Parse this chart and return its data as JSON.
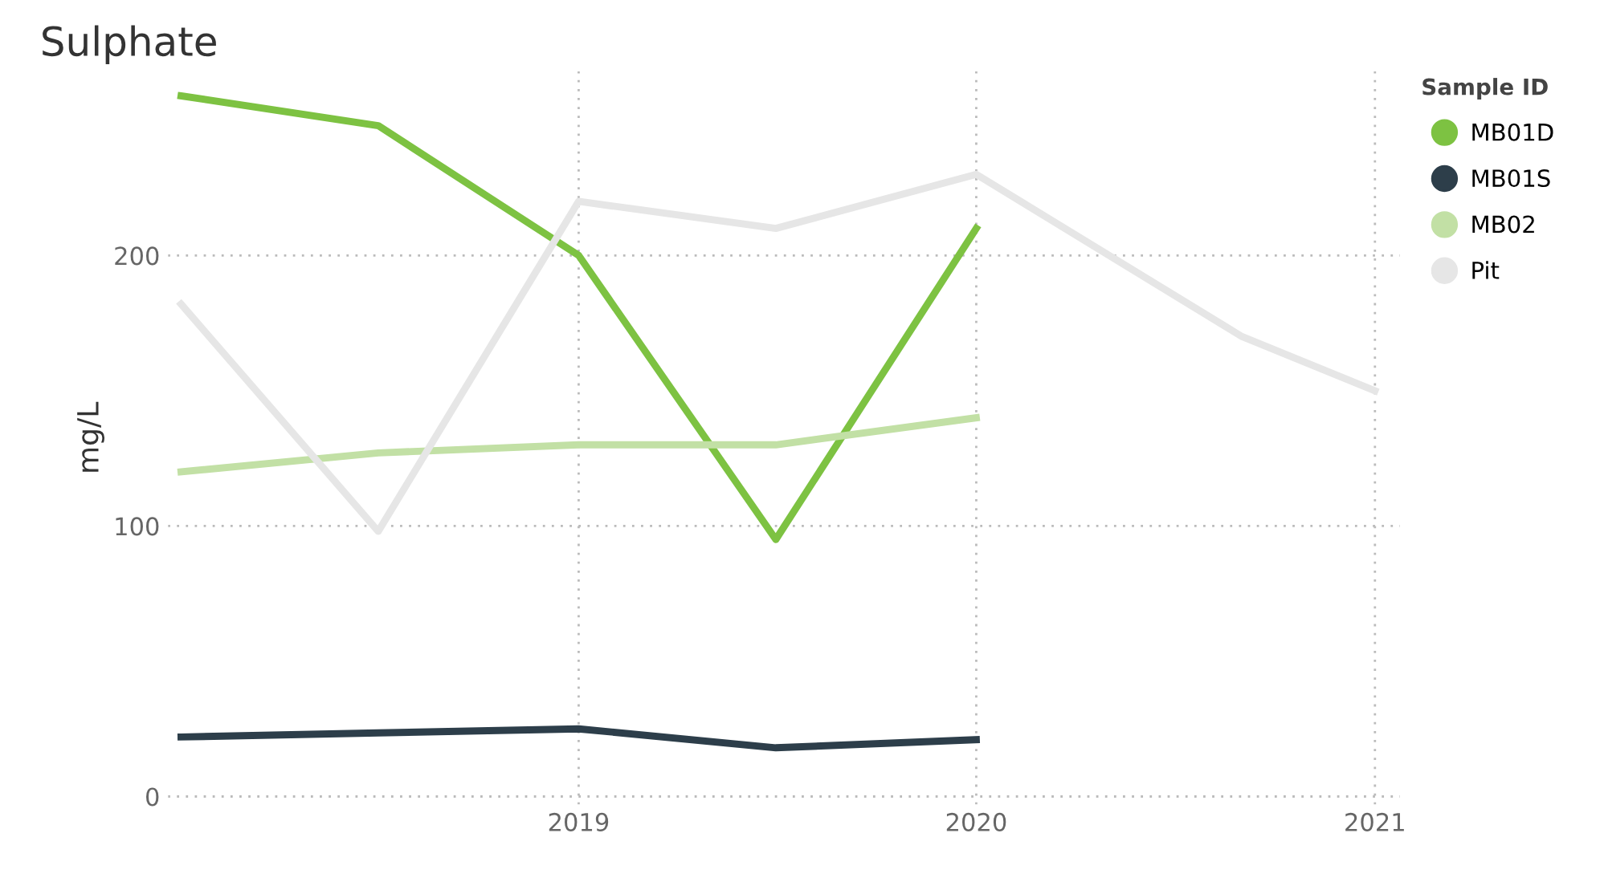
{
  "chart_data": {
    "type": "line",
    "title": "Sulphate",
    "ylabel": "mg/L",
    "legend_title": "Sample ID",
    "x": [
      "2018-01",
      "2018-07",
      "2019-01",
      "2019-07",
      "2020-01"
    ],
    "series": [
      {
        "name": "MB01D",
        "color": "#7dc242",
        "values": [
          259,
          248,
          200,
          95,
          210
        ]
      },
      {
        "name": "MB01S",
        "color": "#2d3e4a",
        "values": [
          22,
          23.5,
          25,
          18,
          21
        ]
      },
      {
        "name": "MB02",
        "color": "#c2e0a5",
        "values": [
          120,
          127,
          130,
          130,
          140
        ]
      },
      {
        "name": "Pit",
        "color": "#e6e6e6",
        "x": [
          "2018-01",
          "2018-07",
          "2019-01",
          "2019-07",
          "2020-01",
          "2020-09",
          "2021-01"
        ],
        "values": [
          182,
          98,
          220,
          210,
          230,
          170,
          150
        ]
      }
    ],
    "xlim": [
      "2017-12-20",
      "2021-01-24"
    ],
    "xticks": [
      {
        "value": "2019-01-01",
        "label": "2019"
      },
      {
        "value": "2020-01-01",
        "label": "2020"
      },
      {
        "value": "2021-01-01",
        "label": "2021"
      }
    ],
    "ylim": [
      -3,
      268
    ],
    "yticks": [
      0,
      100,
      200
    ],
    "grid": true,
    "legend": "right",
    "marker": "none",
    "line_style": "solid"
  }
}
